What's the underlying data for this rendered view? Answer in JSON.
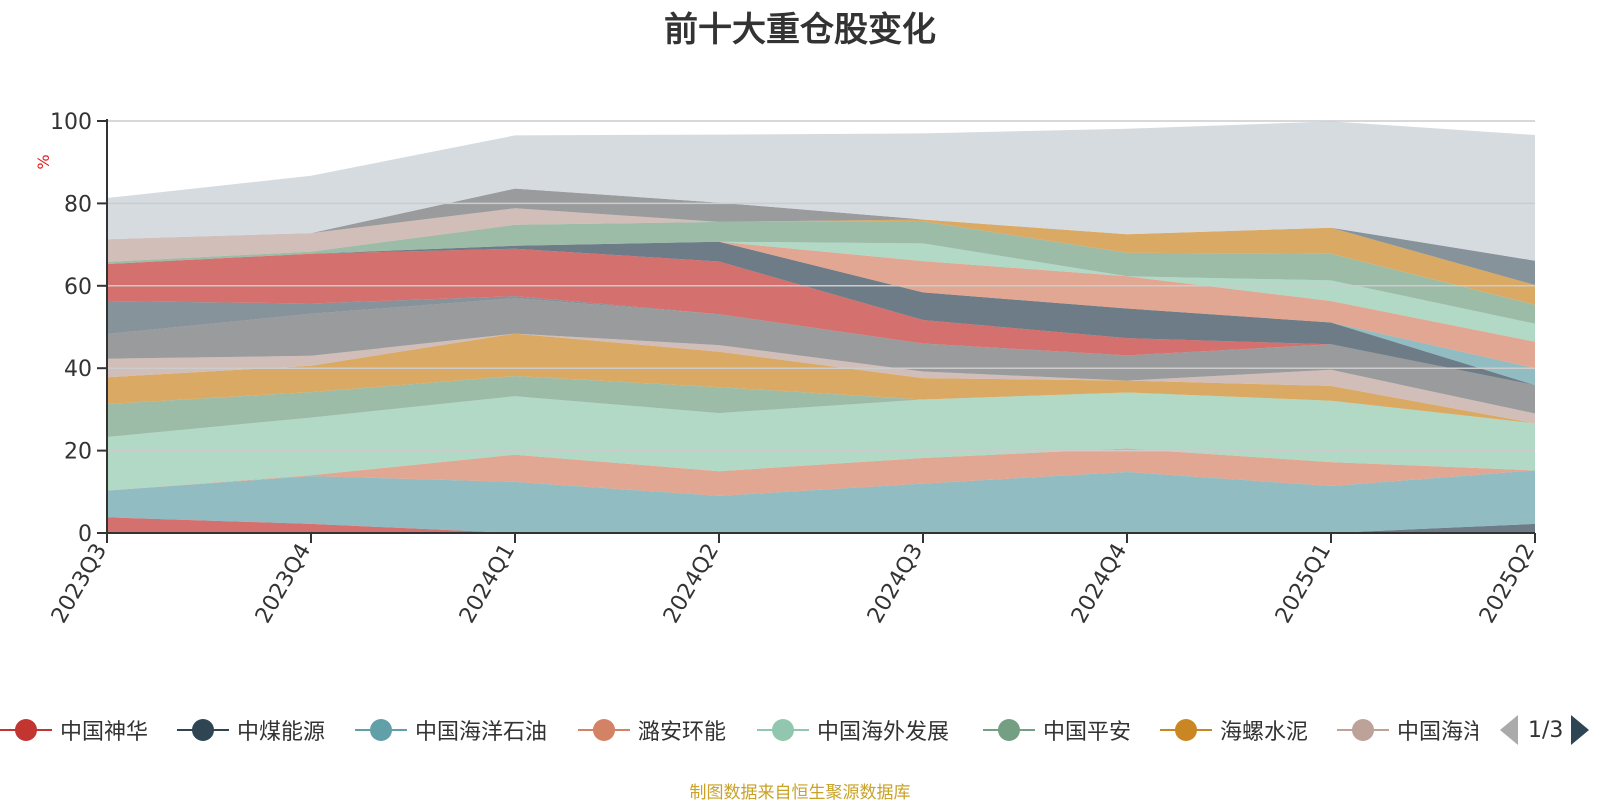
{
  "title": "前十大重仓股变化",
  "source": "制图数据来自恒生聚源数据库",
  "pager": {
    "text": "1/3"
  },
  "colors": {
    "axis": "#333333",
    "grid": "#cccccc",
    "background_band": "#d6dbe1"
  },
  "chart_data": {
    "type": "area",
    "stacked": true,
    "title": "前十大重仓股变化",
    "ylabel": "%",
    "ylim": [
      0,
      100
    ],
    "yticks": [
      0,
      20,
      40,
      60,
      80,
      100
    ],
    "grid": true,
    "legend_position": "bottom",
    "categories": [
      "2023Q3",
      "2023Q4",
      "2024Q1",
      "2024Q2",
      "2024Q3",
      "2024Q4",
      "2025Q1",
      "2025Q2"
    ],
    "series": [
      {
        "name": "中国神华",
        "color": "#c23531",
        "values": [
          3.8,
          2.2,
          0,
          0,
          0,
          0,
          0,
          0
        ]
      },
      {
        "name": "中煤能源",
        "color": "#2f4554",
        "values": [
          0,
          0,
          0,
          0,
          0,
          0,
          0,
          2.2
        ]
      },
      {
        "name": "中国海洋石油",
        "color": "#61a0a8",
        "values": [
          6.5,
          11.6,
          12.4,
          9.0,
          12.0,
          14.8,
          11.4,
          13.0
        ]
      },
      {
        "name": "潞安环能",
        "color": "#d48265",
        "values": [
          0,
          0.2,
          6.6,
          6.0,
          6.2,
          5.7,
          5.8,
          0
        ]
      },
      {
        "name": "中国海外发展",
        "color": "#91c7ae",
        "values": [
          13.0,
          14.0,
          14.2,
          14.1,
          14.2,
          13.6,
          14.9,
          11.4
        ]
      },
      {
        "name": "中国平安",
        "color": "#749f83",
        "values": [
          8.0,
          6.2,
          4.9,
          6.3,
          0,
          0,
          0,
          0
        ]
      },
      {
        "name": "海螺水泥",
        "color": "#ca8622",
        "values": [
          6.5,
          6.4,
          10.3,
          8.6,
          5.2,
          2.9,
          3.6,
          0
        ]
      },
      {
        "name": "中国海洋石油",
        "color": "#bda29a",
        "values": [
          4.5,
          2.4,
          0,
          1.6,
          1.6,
          0,
          3.9,
          2.4
        ]
      },
      {
        "name": "",
        "color": "#6e7074",
        "values": [
          6.0,
          10.2,
          8.6,
          7.5,
          6.8,
          6.1,
          6.2,
          6.9
        ]
      },
      {
        "name": "",
        "color": "#546570",
        "values": [
          8.0,
          2.5,
          0.5,
          0,
          0,
          0,
          0,
          0
        ]
      },
      {
        "name": "",
        "color": "#c23531",
        "values": [
          9.0,
          12.1,
          11.5,
          12.8,
          5.7,
          4.2,
          0,
          0
        ]
      },
      {
        "name": "",
        "color": "#2f4554",
        "values": [
          0,
          0,
          0.7,
          4.8,
          6.7,
          7.2,
          5.3,
          0
        ]
      },
      {
        "name": "",
        "color": "#61a0a8",
        "values": [
          0,
          0,
          0,
          0,
          0,
          0,
          0,
          4.1
        ]
      },
      {
        "name": "",
        "color": "#d48265",
        "values": [
          0,
          0,
          0,
          0,
          7.6,
          7.8,
          5.2,
          6.4
        ]
      },
      {
        "name": "",
        "color": "#91c7ae",
        "values": [
          0,
          0,
          0,
          0,
          4.3,
          0,
          5.0,
          4.4
        ]
      },
      {
        "name": "",
        "color": "#749f83",
        "values": [
          0.5,
          0.5,
          5.1,
          4.8,
          5.3,
          5.7,
          6.5,
          4.6
        ]
      },
      {
        "name": "",
        "color": "#ca8622",
        "values": [
          0,
          0,
          0,
          0,
          0.5,
          4.5,
          6.3,
          4.8
        ]
      },
      {
        "name": "",
        "color": "#bda29a",
        "values": [
          5.5,
          4.5,
          4.0,
          0,
          0,
          0,
          0,
          0
        ]
      },
      {
        "name": "",
        "color": "#6e7074",
        "values": [
          0,
          0,
          4.8,
          4.7,
          0,
          0,
          0,
          0
        ]
      },
      {
        "name": "",
        "color": "#546570",
        "values": [
          0,
          0,
          0,
          0,
          0,
          0,
          0,
          5.9
        ]
      },
      {
        "name": "",
        "color": "#c4ccd3",
        "values": [
          10.0,
          13.9,
          12.9,
          16.5,
          20.9,
          25.6,
          25.8,
          30.5
        ]
      }
    ]
  },
  "legend": {
    "items": [
      {
        "label": "中国神华",
        "color": "#c23531"
      },
      {
        "label": "中煤能源",
        "color": "#2f4554"
      },
      {
        "label": "中国海洋石油",
        "color": "#61a0a8"
      },
      {
        "label": "潞安环能",
        "color": "#d48265"
      },
      {
        "label": "中国海外发展",
        "color": "#91c7ae"
      },
      {
        "label": "中国平安",
        "color": "#749f83"
      },
      {
        "label": "海螺水泥",
        "color": "#ca8622"
      },
      {
        "label": "中国海洋石油",
        "color": "#bda29a"
      }
    ]
  }
}
